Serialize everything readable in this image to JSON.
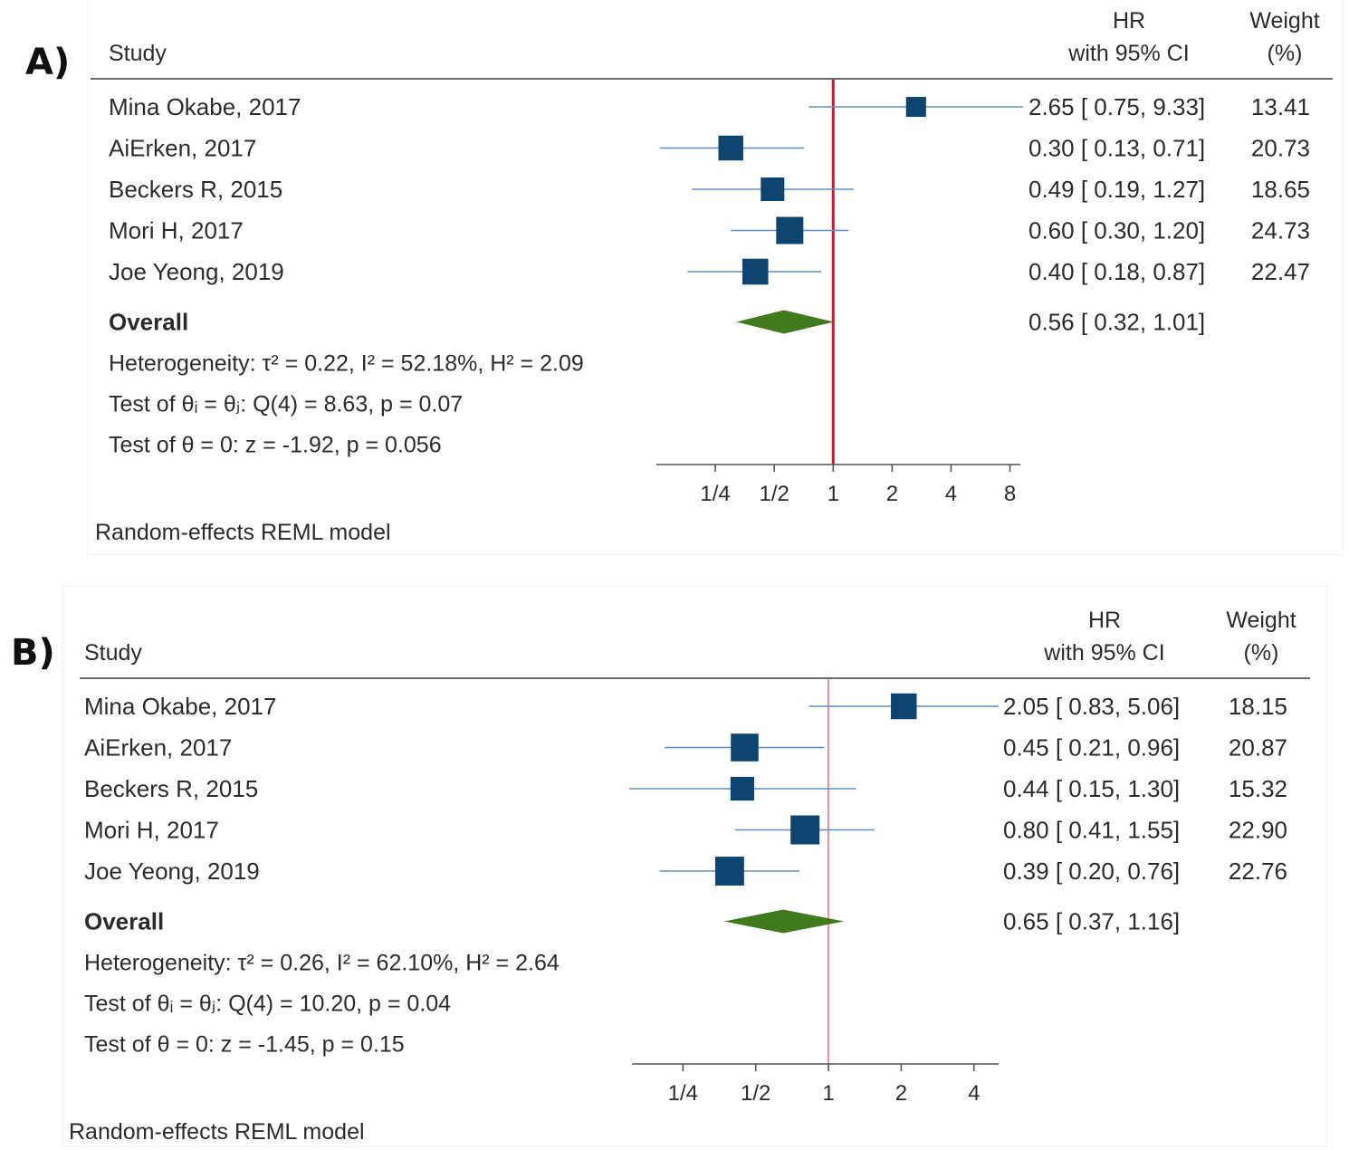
{
  "colors": {
    "marker": "#0e4470",
    "ci_line": "#5e8fbf",
    "diamond": "#3f7a1c",
    "null_line_a": "#d0182f",
    "null_line_b": "#f08a95",
    "rule": "#6b6b6b"
  },
  "chart_data": [
    {
      "type": "forest",
      "panel_label": "A)",
      "headers": {
        "study": "Study",
        "hr_line1": "HR",
        "hr_line2": "with 95% CI",
        "weight_line1": "Weight",
        "weight_line2": "(%)"
      },
      "studies": [
        {
          "name": "Mina Okabe, 2017",
          "hr": 2.65,
          "lower": 0.75,
          "upper": 9.33,
          "weight": 13.41,
          "hr_text": "2.65 [  0.75,  9.33]",
          "weight_text": "13.41"
        },
        {
          "name": "AiErken, 2017",
          "hr": 0.3,
          "lower": 0.13,
          "upper": 0.71,
          "weight": 20.73,
          "hr_text": "0.30 [  0.13,  0.71]",
          "weight_text": "20.73"
        },
        {
          "name": "Beckers R, 2015",
          "hr": 0.49,
          "lower": 0.19,
          "upper": 1.27,
          "weight": 18.65,
          "hr_text": "0.49 [  0.19,  1.27]",
          "weight_text": "18.65"
        },
        {
          "name": "Mori H, 2017",
          "hr": 0.6,
          "lower": 0.3,
          "upper": 1.2,
          "weight": 24.73,
          "hr_text": "0.60 [  0.30,  1.20]",
          "weight_text": "24.73"
        },
        {
          "name": "Joe Yeong, 2019",
          "hr": 0.4,
          "lower": 0.18,
          "upper": 0.87,
          "weight": 22.47,
          "hr_text": "0.40 [  0.18,  0.87]",
          "weight_text": "22.47"
        }
      ],
      "overall": {
        "label": "Overall",
        "hr": 0.56,
        "lower": 0.32,
        "upper": 1.01,
        "hr_text": "0.56 [  0.32,  1.01]"
      },
      "stats": {
        "heterogeneity": "Heterogeneity: τ² = 0.22, I² = 52.18%, H² = 2.09",
        "test_q": "Test of θᵢ = θⱼ: Q(4) = 8.63, p = 0.07",
        "test_z": "Test of θ = 0: z = -1.92, p = 0.056"
      },
      "ticks": [
        0.25,
        0.5,
        1,
        2,
        4,
        8
      ],
      "tick_labels": [
        "1/4",
        "1/2",
        "1",
        "2",
        "4",
        "8"
      ],
      "xlim": [
        0.125,
        9.33
      ],
      "null_value": 1,
      "scale": "log",
      "model_note": "Random-effects REML model"
    },
    {
      "type": "forest",
      "panel_label": "B)",
      "headers": {
        "study": "Study",
        "hr_line1": "HR",
        "hr_line2": "with 95% CI",
        "weight_line1": "Weight",
        "weight_line2": "(%)"
      },
      "studies": [
        {
          "name": "Mina Okabe, 2017",
          "hr": 2.05,
          "lower": 0.83,
          "upper": 5.06,
          "weight": 18.15,
          "hr_text": "2.05 [  0.83,  5.06]",
          "weight_text": "18.15"
        },
        {
          "name": "AiErken, 2017",
          "hr": 0.45,
          "lower": 0.21,
          "upper": 0.96,
          "weight": 20.87,
          "hr_text": "0.45 [  0.21,  0.96]",
          "weight_text": "20.87"
        },
        {
          "name": "Beckers R, 2015",
          "hr": 0.44,
          "lower": 0.15,
          "upper": 1.3,
          "weight": 15.32,
          "hr_text": "0.44 [  0.15,  1.30]",
          "weight_text": "15.32"
        },
        {
          "name": "Mori H, 2017",
          "hr": 0.8,
          "lower": 0.41,
          "upper": 1.55,
          "weight": 22.9,
          "hr_text": "0.80 [  0.41,  1.55]",
          "weight_text": "22.90"
        },
        {
          "name": "Joe Yeong, 2019",
          "hr": 0.39,
          "lower": 0.2,
          "upper": 0.76,
          "weight": 22.76,
          "hr_text": "0.39 [  0.20,  0.76]",
          "weight_text": "22.76"
        }
      ],
      "overall": {
        "label": "Overall",
        "hr": 0.65,
        "lower": 0.37,
        "upper": 1.16,
        "hr_text": "0.65 [  0.37,  1.16]"
      },
      "stats": {
        "heterogeneity": "Heterogeneity: τ² = 0.26, I² = 62.10%, H² = 2.64",
        "test_q": "Test of θᵢ = θⱼ: Q(4) = 10.20, p = 0.04",
        "test_z": "Test of θ = 0: z = -1.45, p = 0.15"
      },
      "ticks": [
        0.25,
        0.5,
        1,
        2,
        4
      ],
      "tick_labels": [
        "1/4",
        "1/2",
        "1",
        "2",
        "4"
      ],
      "xlim": [
        0.15,
        5.06
      ],
      "null_value": 1,
      "scale": "log",
      "model_note": "Random-effects REML model"
    }
  ]
}
